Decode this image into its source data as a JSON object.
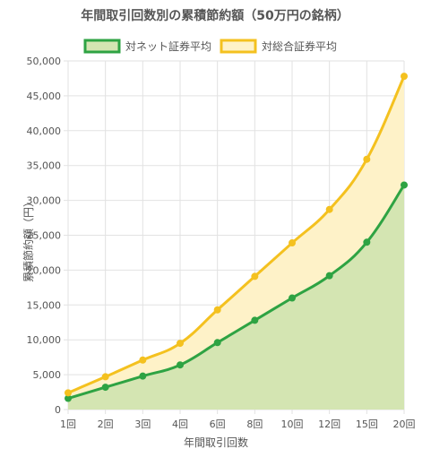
{
  "chart_data": {
    "type": "area",
    "title": "年間取引回数別の累積節約額（50万円の銘柄）",
    "xlabel": "年間取引回数",
    "ylabel": "累積節約額（円）",
    "categories": [
      "1回",
      "2回",
      "3回",
      "4回",
      "6回",
      "8回",
      "10回",
      "12回",
      "15回",
      "20回"
    ],
    "ylim": [
      0,
      50000
    ],
    "yticks": [
      "0",
      "5,000",
      "10,000",
      "15,000",
      "20,000",
      "25,000",
      "30,000",
      "35,000",
      "40,000",
      "45,000",
      "50,000"
    ],
    "grid": true,
    "legend_position": "top",
    "series": [
      {
        "name": "対ネット証券平均",
        "values": [
          1600,
          3200,
          4800,
          6400,
          9600,
          12800,
          16000,
          19200,
          24000,
          32200
        ],
        "line_color": "#2ea343",
        "fill_color": "#d4e5b2"
      },
      {
        "name": "対総合証券平均",
        "values": [
          2400,
          4700,
          7100,
          9500,
          14300,
          19100,
          23900,
          28700,
          35900,
          47800
        ],
        "line_color": "#f4c11f",
        "fill_color": "#fef2c8"
      }
    ]
  }
}
